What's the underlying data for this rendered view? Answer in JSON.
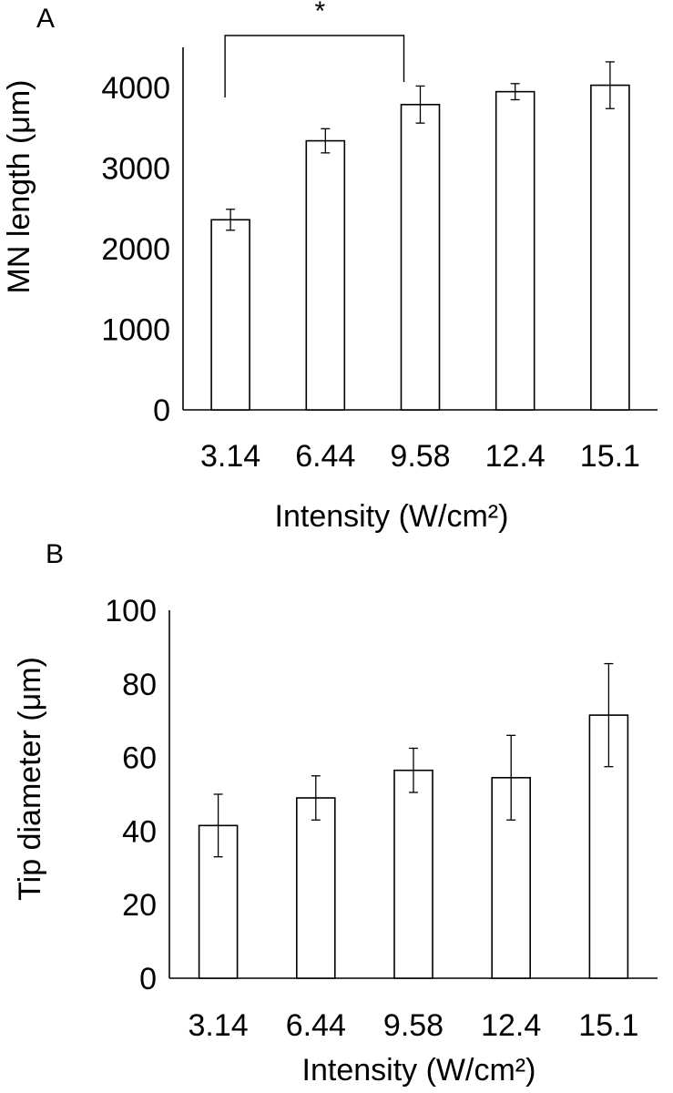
{
  "chart_data": [
    {
      "panel": "A",
      "type": "bar",
      "title": "",
      "xlabel": "Intensity (W/cm²)",
      "ylabel": "MN length (μm)",
      "categories": [
        "3.14",
        "6.44",
        "9.58",
        "12.4",
        "15.1"
      ],
      "values": [
        2360,
        3340,
        3790,
        3950,
        4030
      ],
      "errors": [
        130,
        150,
        230,
        100,
        290
      ],
      "ylim": [
        0,
        4500
      ],
      "yticks": [
        "0",
        "1000",
        "2000",
        "3000",
        "4000"
      ],
      "significance": {
        "from": 0,
        "to": 2,
        "label": "*"
      },
      "grid": false,
      "bar_fill": "#ffffff",
      "bar_stroke": "#000000"
    },
    {
      "panel": "B",
      "type": "bar",
      "title": "",
      "xlabel": "Intensity (W/cm²)",
      "ylabel": "Tip diameter (μm)",
      "categories": [
        "3.14",
        "6.44",
        "9.58",
        "12.4",
        "15.1"
      ],
      "values": [
        41.5,
        49,
        56.5,
        54.5,
        71.5
      ],
      "errors": [
        8.5,
        6,
        6,
        11.5,
        14
      ],
      "ylim": [
        0,
        100
      ],
      "yticks": [
        "0",
        "20",
        "40",
        "60",
        "80",
        "100"
      ],
      "grid": false,
      "bar_fill": "#ffffff",
      "bar_stroke": "#000000"
    }
  ]
}
